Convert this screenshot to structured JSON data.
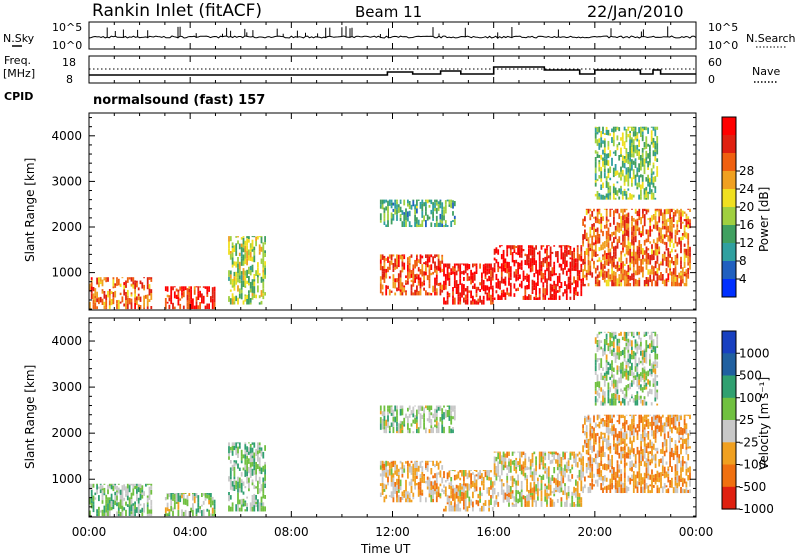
{
  "header": {
    "title": "Rankin Inlet (fitACF)",
    "beam": "Beam 11",
    "date": "22/Jan/2010"
  },
  "noise_panel": {
    "left_label": "N.Sky",
    "right_label": "N.Search",
    "left_ticks": [
      "10^5",
      "10^0"
    ],
    "right_ticks": [
      "10^5",
      "10^0"
    ]
  },
  "freq_panel": {
    "left_label_1": "Freq.",
    "left_label_2": "[MHz]",
    "right_label": "Nave",
    "left_ticks": [
      "18",
      "8"
    ],
    "right_ticks": [
      "60",
      "0"
    ],
    "cpid_label": "CPID",
    "cpid_value": "normalsound (fast) 157"
  },
  "power_panel": {
    "ylabel": "Slant Range [km]",
    "yticks": [
      "1000",
      "2000",
      "3000",
      "4000"
    ],
    "colorbar_label": "Power [dB]",
    "colorbar_ticks": [
      "4",
      "8",
      "12",
      "16",
      "20",
      "24",
      "28"
    ],
    "colors": [
      "#0030ff",
      "#2060c0",
      "#30a0a0",
      "#40a060",
      "#a0d040",
      "#f0e020",
      "#f0a020",
      "#f06010",
      "#e02010",
      "#ff0000"
    ]
  },
  "velocity_panel": {
    "ylabel": "Slant Range [km]",
    "yticks": [
      "1000",
      "2000",
      "3000",
      "4000"
    ],
    "colorbar_label": "Velocity [m s⁻¹]",
    "colorbar_ticks": [
      "1000",
      "500",
      "100",
      "25",
      "-25",
      "-100",
      "-500",
      "-1000"
    ],
    "colors": [
      "#1840c0",
      "#2060a0",
      "#30a070",
      "#70c040",
      "#c8c8c8",
      "#f0a020",
      "#f07010",
      "#e02010"
    ]
  },
  "x_axis": {
    "ticks": [
      "00:00",
      "04:00",
      "08:00",
      "12:00",
      "16:00",
      "20:00",
      "00:00"
    ],
    "label": "Time UT"
  },
  "chart_data": {
    "type": "heatmap",
    "title": "Rankin Inlet (fitACF)",
    "subtitle": "Beam 11",
    "date": "22/Jan/2010",
    "xlabel": "Time UT",
    "ylabel": "Slant Range [km]",
    "xlim": [
      0,
      24
    ],
    "ylim": [
      180,
      4500
    ],
    "power_range_dB": [
      0,
      30
    ],
    "velocity_range_ms": [
      -1000,
      1000
    ],
    "frequency_MHz_approx": 10.5,
    "regions": [
      {
        "t0": 0.0,
        "t1": 2.5,
        "r0": 200,
        "r1": 900,
        "power": 22,
        "velocity": 100
      },
      {
        "t0": 3.0,
        "t1": 5.0,
        "r0": 200,
        "r1": 700,
        "power": 26,
        "velocity": 25
      },
      {
        "t0": 5.5,
        "t1": 7.0,
        "r0": 300,
        "r1": 1800,
        "power": 14,
        "velocity": 100
      },
      {
        "t0": 11.5,
        "t1": 14.0,
        "r0": 500,
        "r1": 1400,
        "power": 24,
        "velocity": -300
      },
      {
        "t0": 14.0,
        "t1": 16.0,
        "r0": 300,
        "r1": 1200,
        "power": 28,
        "velocity": -300
      },
      {
        "t0": 16.0,
        "t1": 19.5,
        "r0": 400,
        "r1": 1600,
        "power": 28,
        "velocity": -200
      },
      {
        "t0": 19.5,
        "t1": 23.8,
        "r0": 700,
        "r1": 2400,
        "power": 22,
        "velocity": -400
      },
      {
        "t0": 11.5,
        "t1": 14.5,
        "r0": 2000,
        "r1": 2600,
        "power": 10,
        "velocity": 50
      },
      {
        "t0": 20.0,
        "t1": 22.5,
        "r0": 2600,
        "r1": 4200,
        "power": 12,
        "velocity": 25
      }
    ]
  }
}
